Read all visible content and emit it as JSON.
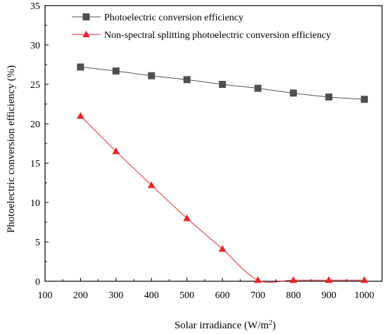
{
  "chart_data": {
    "type": "line",
    "xlabel": "Solar irradiance (W/m",
    "xlabel_sup": "2",
    "xlabel_end": ")",
    "ylabel": "Photoelectric conversion efficiency (%)",
    "xlim": [
      100,
      1050
    ],
    "ylim": [
      0,
      35
    ],
    "x_ticks": [
      100,
      200,
      300,
      400,
      500,
      600,
      700,
      800,
      900,
      1000
    ],
    "y_ticks": [
      0,
      5,
      10,
      15,
      20,
      25,
      30,
      35
    ],
    "grid": false,
    "legend_placement": "top",
    "x": [
      200,
      300,
      400,
      500,
      600,
      700,
      800,
      900,
      1000
    ],
    "series": [
      {
        "name": "Photoelectric conversion efficiency",
        "marker": "square",
        "color": "#505050",
        "line_color": "#555555",
        "values": [
          27.2,
          26.7,
          26.1,
          25.6,
          25.0,
          24.5,
          23.9,
          23.4,
          23.1
        ]
      },
      {
        "name": "Non-spectral splitting photoelectric conversion efficiency",
        "marker": "triangle",
        "color": "#e8262a",
        "line_color": "#e8262a",
        "values": [
          21.0,
          16.5,
          12.2,
          8.0,
          4.1,
          0.15,
          0.15,
          0.15,
          0.15
        ]
      }
    ]
  }
}
